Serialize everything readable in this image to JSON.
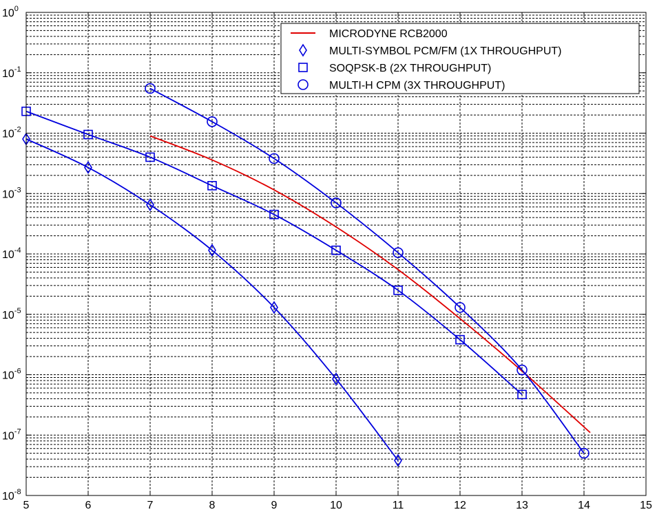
{
  "chart_data": {
    "type": "line",
    "x_ticks": [
      "5",
      "6",
      "7",
      "8",
      "9",
      "10",
      "11",
      "12",
      "13",
      "14",
      "15"
    ],
    "y_ticks": [
      {
        "base": "10",
        "exp": "0"
      },
      {
        "base": "10",
        "exp": "-1"
      },
      {
        "base": "10",
        "exp": "-2"
      },
      {
        "base": "10",
        "exp": "-3"
      },
      {
        "base": "10",
        "exp": "-4"
      },
      {
        "base": "10",
        "exp": "-5"
      },
      {
        "base": "10",
        "exp": "-6"
      },
      {
        "base": "10",
        "exp": "-7"
      },
      {
        "base": "10",
        "exp": "-8"
      }
    ],
    "xlim": [
      5,
      15
    ],
    "ylim": [
      1e-08,
      1
    ],
    "y_scale": "log",
    "grid": true,
    "legend_position": "top-right",
    "series": [
      {
        "name": "MICRODYNE RCB2000",
        "color": "#e00000",
        "marker": "none",
        "x": [
          7,
          8,
          9,
          10,
          11,
          12,
          13,
          14.1
        ],
        "y": [
          0.009,
          0.0036,
          0.00115,
          0.00028,
          5.5e-05,
          8.5e-06,
          1.15e-06,
          1.1e-07
        ]
      },
      {
        "name": "MULTI-SYMBOL PCM/FM (1X THROUGHPUT)",
        "color": "#0000dd",
        "marker": "diamond",
        "x": [
          5,
          6,
          7,
          8,
          9,
          10,
          11
        ],
        "y": [
          0.008,
          0.0027,
          0.00065,
          0.000115,
          1.3e-05,
          8.5e-07,
          3.8e-08
        ]
      },
      {
        "name": "SOQPSK-B (2X THROUGHPUT)",
        "color": "#0000dd",
        "marker": "square",
        "x": [
          5,
          6,
          7,
          8,
          9,
          10,
          11,
          12,
          13
        ],
        "y": [
          0.023,
          0.0095,
          0.004,
          0.00135,
          0.00045,
          0.000115,
          2.5e-05,
          3.8e-06,
          4.7e-07
        ]
      },
      {
        "name": "MULTI-H CPM (3X THROUGHPUT)",
        "color": "#0000dd",
        "marker": "circle",
        "x": [
          7,
          8,
          9,
          10,
          11,
          12,
          13,
          14
        ],
        "y": [
          0.055,
          0.0155,
          0.0038,
          0.0007,
          0.000105,
          1.3e-05,
          1.2e-06,
          5e-08
        ]
      }
    ]
  }
}
